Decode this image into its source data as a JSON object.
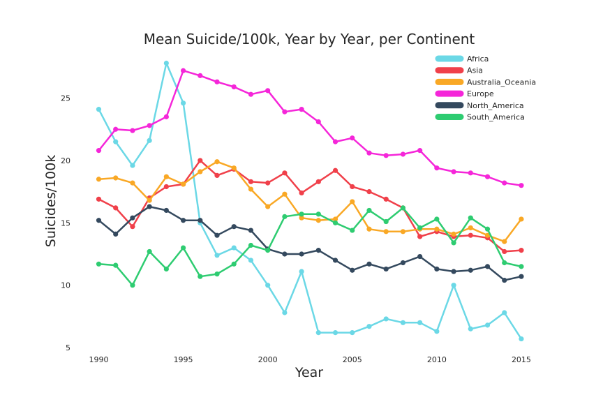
{
  "chart_data": {
    "type": "line",
    "title": "Mean Suicide/100k, Year by Year, per Continent",
    "xlabel": "Year",
    "ylabel": "Suicides/100k",
    "xlim": [
      1988.7,
      2016.2
    ],
    "ylim": [
      4.5,
      28.5
    ],
    "xticks": [
      1990,
      1995,
      2000,
      2005,
      2010,
      2015
    ],
    "yticks": [
      5,
      10,
      15,
      20,
      25
    ],
    "grid": false,
    "legend_position": "top-right",
    "x": [
      1990,
      1991,
      1992,
      1993,
      1994,
      1995,
      1996,
      1997,
      1998,
      1999,
      2000,
      2001,
      2002,
      2003,
      2004,
      2005,
      2006,
      2007,
      2008,
      2009,
      2010,
      2011,
      2012,
      2013,
      2014,
      2015
    ],
    "series": [
      {
        "name": "Africa",
        "color": "#6bd8e6",
        "values": [
          24.1,
          21.5,
          19.6,
          21.6,
          27.8,
          24.6,
          15.0,
          12.4,
          13.0,
          12.0,
          10.0,
          7.8,
          11.1,
          6.2,
          6.2,
          6.2,
          6.7,
          7.3,
          7.0,
          7.0,
          6.3,
          10.0,
          6.5,
          6.8,
          7.8,
          5.7
        ]
      },
      {
        "name": "Asia",
        "color": "#f0404a",
        "values": [
          16.9,
          16.2,
          14.7,
          17.0,
          17.9,
          18.1,
          20.0,
          18.8,
          19.3,
          18.3,
          18.2,
          19.0,
          17.4,
          18.3,
          19.2,
          17.9,
          17.5,
          16.9,
          16.2,
          13.9,
          14.3,
          13.9,
          14.0,
          13.8,
          12.7,
          12.8
        ]
      },
      {
        "name": "Australia_Oceania",
        "color": "#f9a825",
        "values": [
          18.5,
          18.6,
          18.2,
          16.8,
          18.7,
          18.1,
          19.1,
          19.9,
          19.4,
          17.7,
          16.3,
          17.3,
          15.4,
          15.2,
          15.3,
          16.7,
          14.5,
          14.3,
          14.3,
          14.5,
          14.5,
          14.1,
          14.6,
          14.0,
          13.5,
          15.3
        ]
      },
      {
        "name": "Europe",
        "color": "#f526d9",
        "values": [
          20.8,
          22.5,
          22.4,
          22.8,
          23.5,
          27.2,
          26.8,
          26.3,
          25.9,
          25.3,
          25.6,
          23.9,
          24.1,
          23.1,
          21.5,
          21.8,
          20.6,
          20.4,
          20.5,
          20.8,
          19.4,
          19.1,
          19.0,
          18.7,
          18.2,
          18.0
        ]
      },
      {
        "name": "North_America",
        "color": "#34495e",
        "values": [
          15.2,
          14.1,
          15.4,
          16.3,
          16.0,
          15.2,
          15.2,
          14.0,
          14.7,
          14.4,
          12.9,
          12.5,
          12.5,
          12.8,
          12.0,
          11.2,
          11.7,
          11.3,
          11.8,
          12.3,
          11.3,
          11.1,
          11.2,
          11.5,
          10.4,
          10.7
        ]
      },
      {
        "name": "South_America",
        "color": "#2ecc71",
        "values": [
          11.7,
          11.6,
          10.0,
          12.7,
          11.3,
          13.0,
          10.7,
          10.9,
          11.7,
          13.2,
          12.8,
          15.5,
          15.7,
          15.7,
          15.0,
          14.4,
          16.0,
          15.1,
          16.2,
          14.6,
          15.3,
          13.4,
          15.4,
          14.5,
          11.8,
          11.5
        ]
      }
    ]
  }
}
